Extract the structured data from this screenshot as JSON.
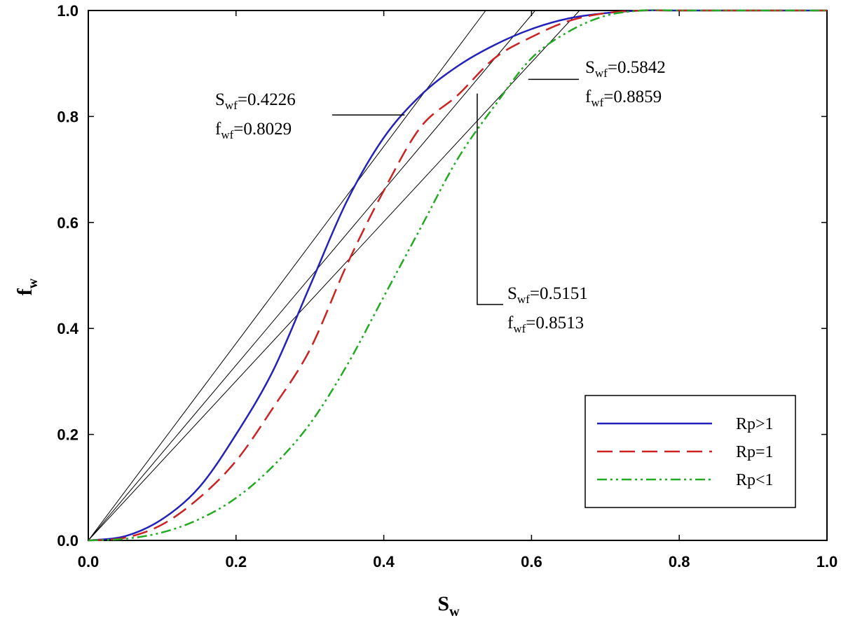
{
  "chart_data": {
    "type": "line",
    "title": "",
    "xlabel": {
      "main": "S",
      "sub": "w"
    },
    "ylabel": {
      "main": "f",
      "sub": "w"
    },
    "xlim": [
      0.0,
      1.0
    ],
    "ylim": [
      0.0,
      1.0
    ],
    "xticks": [
      "0.0",
      "0.2",
      "0.4",
      "0.6",
      "0.8",
      "1.0"
    ],
    "yticks": [
      "0.0",
      "0.2",
      "0.4",
      "0.6",
      "0.8",
      "1.0"
    ],
    "grid": false,
    "legend_position": "bottom-right",
    "series": [
      {
        "name": "Rp>1",
        "color": "#2222bb",
        "style": "solid",
        "x": [
          0.0,
          0.05,
          0.1,
          0.15,
          0.2,
          0.25,
          0.3,
          0.35,
          0.4,
          0.45,
          0.5,
          0.55,
          0.6,
          0.65,
          0.7,
          0.75,
          0.8,
          0.9,
          1.0
        ],
        "y": [
          0.0,
          0.008,
          0.04,
          0.1,
          0.2,
          0.32,
          0.48,
          0.64,
          0.76,
          0.84,
          0.895,
          0.935,
          0.965,
          0.985,
          0.995,
          1.0,
          1.0,
          1.0,
          1.0
        ]
      },
      {
        "name": "Rp=1",
        "color": "#cc2222",
        "style": "dashed",
        "x": [
          0.0,
          0.05,
          0.1,
          0.15,
          0.2,
          0.25,
          0.3,
          0.35,
          0.4,
          0.45,
          0.5,
          0.55,
          0.6,
          0.65,
          0.7,
          0.75,
          0.8,
          0.9,
          1.0
        ],
        "y": [
          0.0,
          0.005,
          0.03,
          0.08,
          0.15,
          0.25,
          0.36,
          0.52,
          0.66,
          0.78,
          0.84,
          0.91,
          0.95,
          0.98,
          0.995,
          1.0,
          1.0,
          1.0,
          1.0
        ]
      },
      {
        "name": "Rp<1",
        "color": "#22aa22",
        "style": "dashdotdot",
        "x": [
          0.0,
          0.05,
          0.1,
          0.15,
          0.2,
          0.25,
          0.3,
          0.35,
          0.4,
          0.45,
          0.5,
          0.55,
          0.6,
          0.65,
          0.7,
          0.75,
          0.8,
          0.9,
          1.0
        ],
        "y": [
          0.0,
          0.003,
          0.015,
          0.04,
          0.08,
          0.14,
          0.22,
          0.33,
          0.46,
          0.59,
          0.72,
          0.82,
          0.91,
          0.96,
          0.99,
          1.0,
          1.0,
          1.0,
          1.0
        ]
      }
    ],
    "tangent_lines": [
      {
        "from": [
          0.0,
          0.0
        ],
        "to": [
          0.538,
          1.0
        ]
      },
      {
        "from": [
          0.0,
          0.0
        ],
        "to": [
          0.605,
          1.0
        ]
      },
      {
        "from": [
          0.0,
          0.0
        ],
        "to": [
          0.665,
          1.0
        ]
      }
    ],
    "annotations": [
      {
        "line1": {
          "main": "S",
          "sub": "wf",
          "value": "=0.4226"
        },
        "line2": {
          "main": "f",
          "sub": "wf",
          "value": "=0.8029"
        },
        "point": [
          0.4226,
          0.8029
        ]
      },
      {
        "line1": {
          "main": "S",
          "sub": "wf",
          "value": "=0.5842"
        },
        "line2": {
          "main": "f",
          "sub": "wf",
          "value": "=0.8859"
        },
        "point": [
          0.5842,
          0.8859
        ]
      },
      {
        "line1": {
          "main": "S",
          "sub": "wf",
          "value": "=0.5151"
        },
        "line2": {
          "main": "f",
          "sub": "wf",
          "value": "=0.8513"
        },
        "point": [
          0.5151,
          0.8513
        ]
      }
    ]
  }
}
